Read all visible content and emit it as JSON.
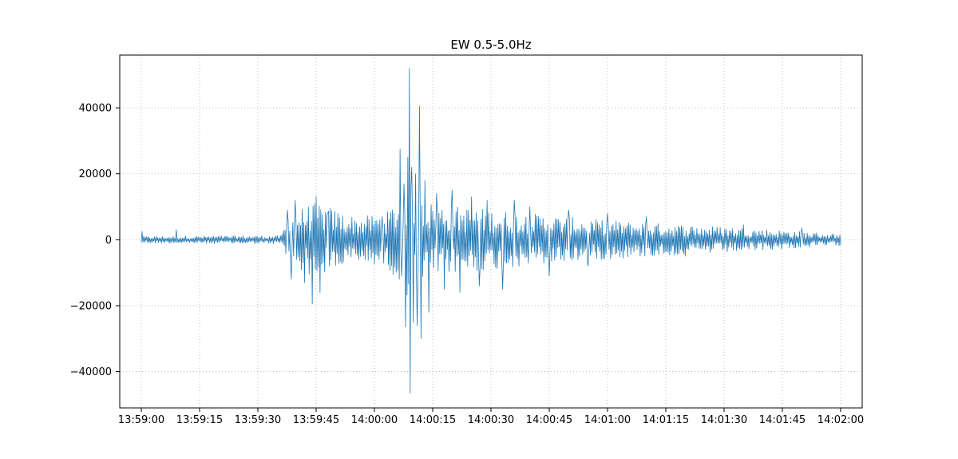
{
  "chart_data": {
    "type": "line",
    "title": "EW 0.5-5.0Hz",
    "xlabel": "",
    "ylabel": "",
    "series_color": "#1f77b4",
    "grid": true,
    "grid_style": "dotted",
    "xlim": [
      "13:59:00",
      "14:02:00"
    ],
    "ylim": [
      -51000,
      56000
    ],
    "x_ticks": [
      "13:59:00",
      "13:59:15",
      "13:59:30",
      "13:59:45",
      "14:00:00",
      "14:00:15",
      "14:00:30",
      "14:00:45",
      "14:01:00",
      "14:01:15",
      "14:01:30",
      "14:01:45",
      "14:02:00"
    ],
    "y_ticks": [
      40000,
      20000,
      0,
      -20000,
      -40000
    ],
    "y_tick_labels": [
      "40000",
      "20000",
      "0",
      "−20000",
      "−40000"
    ],
    "sample_interval_s": 0.2,
    "envelope": {
      "x": [
        "13:59:00",
        "13:59:36",
        "13:59:38",
        "13:59:45",
        "13:59:55",
        "14:00:03",
        "14:00:07",
        "14:00:09",
        "14:00:11",
        "14:00:14",
        "14:00:20",
        "14:00:30",
        "14:00:45",
        "14:00:55",
        "14:01:10",
        "14:01:30",
        "14:01:45",
        "14:02:00"
      ],
      "amplitude": [
        900,
        1100,
        7000,
        10000,
        6000,
        7000,
        12000,
        17000,
        16000,
        10000,
        9000,
        8000,
        6500,
        5500,
        4500,
        3500,
        2500,
        1500
      ]
    },
    "peaks": [
      {
        "x": "13:59:00.2",
        "y": 2500
      },
      {
        "x": "13:59:09",
        "y": 3000
      },
      {
        "x": "13:59:37.5",
        "y": 9000
      },
      {
        "x": "13:59:38.5",
        "y": -12000
      },
      {
        "x": "13:59:39.5",
        "y": 12000
      },
      {
        "x": "13:59:42",
        "y": -13000
      },
      {
        "x": "13:59:44",
        "y": -19500
      },
      {
        "x": "13:59:45",
        "y": 13000
      },
      {
        "x": "13:59:46",
        "y": -16000
      },
      {
        "x": "13:59:48",
        "y": 8000
      },
      {
        "x": "14:00:02",
        "y": 7000
      },
      {
        "x": "14:00:05",
        "y": 8000
      },
      {
        "x": "14:00:06.5",
        "y": 27500
      },
      {
        "x": "14:00:07",
        "y": -11000
      },
      {
        "x": "14:00:07.5",
        "y": 17000
      },
      {
        "x": "14:00:08",
        "y": -26500
      },
      {
        "x": "14:00:08.5",
        "y": 25000
      },
      {
        "x": "14:00:09",
        "y": 52000
      },
      {
        "x": "14:00:09.2",
        "y": -46500
      },
      {
        "x": "14:00:09.6",
        "y": 22000
      },
      {
        "x": "14:00:10",
        "y": -25000
      },
      {
        "x": "14:00:10.5",
        "y": 20000
      },
      {
        "x": "14:00:11",
        "y": -26000
      },
      {
        "x": "14:00:11.5",
        "y": 40500
      },
      {
        "x": "14:00:12",
        "y": -30000
      },
      {
        "x": "14:00:13",
        "y": 18000
      },
      {
        "x": "14:00:14",
        "y": -22000
      },
      {
        "x": "14:00:16",
        "y": 14000
      },
      {
        "x": "14:00:18",
        "y": -15000
      },
      {
        "x": "14:00:20",
        "y": 15000
      },
      {
        "x": "14:00:22",
        "y": -16000
      },
      {
        "x": "14:00:25",
        "y": 13000
      },
      {
        "x": "14:00:27",
        "y": -14000
      },
      {
        "x": "14:00:29",
        "y": 12000
      },
      {
        "x": "14:00:33",
        "y": -15000
      },
      {
        "x": "14:00:36",
        "y": 12000
      },
      {
        "x": "14:00:40",
        "y": 10000
      },
      {
        "x": "14:00:45",
        "y": -11000
      },
      {
        "x": "14:00:50",
        "y": 9000
      },
      {
        "x": "14:00:55",
        "y": -8000
      },
      {
        "x": "14:01:00",
        "y": 8000
      },
      {
        "x": "14:01:10",
        "y": 7000
      },
      {
        "x": "14:01:20",
        "y": -5000
      },
      {
        "x": "14:01:35",
        "y": 4500
      },
      {
        "x": "14:01:50",
        "y": 3500
      }
    ]
  }
}
